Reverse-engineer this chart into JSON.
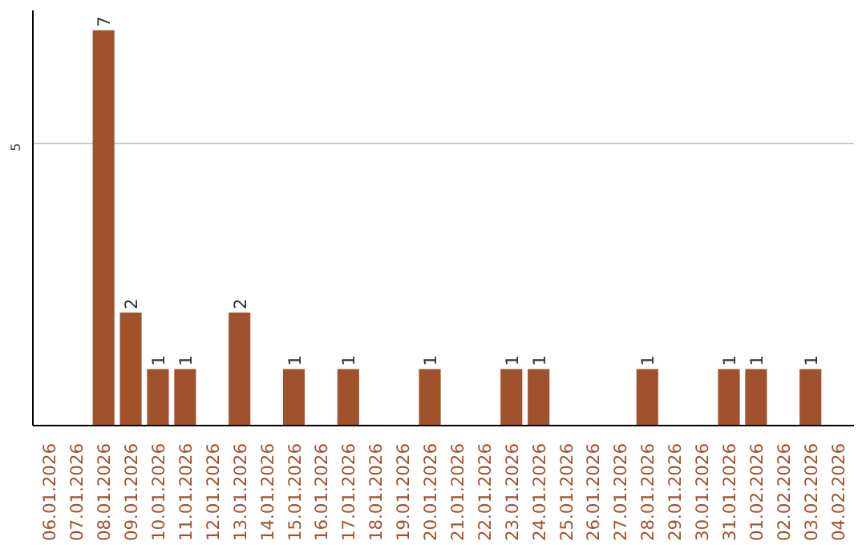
{
  "chart_data": {
    "type": "bar",
    "categories": [
      "06.01.2026",
      "07.01.2026",
      "08.01.2026",
      "09.01.2026",
      "10.01.2026",
      "11.01.2026",
      "12.01.2026",
      "13.01.2026",
      "14.01.2026",
      "15.01.2026",
      "16.01.2026",
      "17.01.2026",
      "18.01.2026",
      "19.01.2026",
      "20.01.2026",
      "21.01.2026",
      "22.01.2026",
      "23.01.2026",
      "24.01.2026",
      "25.01.2026",
      "26.01.2026",
      "27.01.2026",
      "28.01.2026",
      "29.01.2026",
      "30.01.2026",
      "31.01.2026",
      "01.02.2026",
      "02.02.2026",
      "03.02.2026",
      "04.02.2026"
    ],
    "values": [
      0,
      0,
      7,
      2,
      1,
      1,
      0,
      2,
      0,
      1,
      0,
      1,
      0,
      0,
      1,
      0,
      0,
      1,
      1,
      0,
      0,
      0,
      1,
      0,
      0,
      1,
      1,
      0,
      1,
      0
    ],
    "value_labels": [
      null,
      null,
      "7",
      "2",
      "1",
      "1",
      null,
      "2",
      null,
      "1",
      null,
      "1",
      null,
      null,
      "1",
      null,
      null,
      "1",
      "1",
      null,
      null,
      null,
      "1",
      null,
      null,
      "1",
      "1",
      null,
      "1",
      null
    ],
    "color": "#a0522d",
    "ylim": [
      0,
      7.35
    ],
    "yticks": [
      5
    ],
    "grid": "y"
  }
}
